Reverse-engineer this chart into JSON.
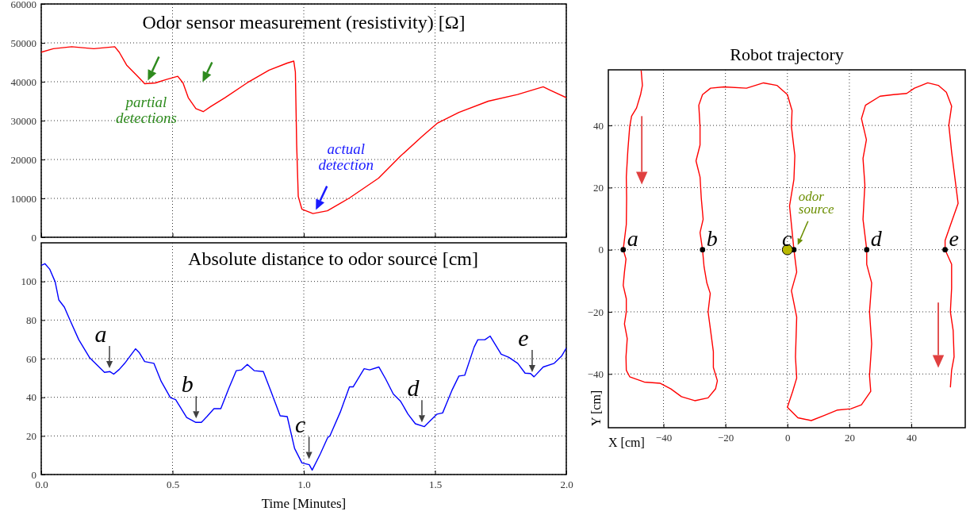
{
  "chart_data": [
    {
      "type": "line",
      "title": "Odor sensor measurement (resistivity) [Ω]",
      "xlim": [
        0,
        2
      ],
      "xticks": [
        0,
        0.5,
        1,
        1.5,
        2
      ],
      "ylim": [
        0,
        60000
      ],
      "yticks": [
        0,
        10000,
        20000,
        30000,
        40000,
        50000,
        60000
      ],
      "tick_labels": "y",
      "grid": true,
      "line_style": "solid",
      "series": [
        {
          "color": "#ff0000",
          "x": [
            0,
            0.046,
            0.116,
            0.2,
            0.28,
            0.297,
            0.325,
            0.366,
            0.394,
            0.435,
            0.477,
            0.52,
            0.54,
            0.56,
            0.589,
            0.617,
            0.645,
            0.7,
            0.784,
            0.868,
            0.937,
            0.962,
            0.968,
            0.973,
            0.979,
            0.993,
            1.035,
            1.09,
            1.174,
            1.285,
            1.369,
            1.452,
            1.508,
            1.591,
            1.703,
            1.814,
            1.912,
            1.94,
            2.0
          ],
          "values": [
            47600,
            48500,
            49000,
            48500,
            49000,
            47600,
            44300,
            41500,
            39500,
            39700,
            40600,
            41400,
            39700,
            35900,
            33100,
            32300,
            33600,
            35900,
            39700,
            43000,
            44800,
            45300,
            42500,
            23700,
            10500,
            7200,
            6100,
            6800,
            10100,
            15200,
            20900,
            26000,
            29300,
            32100,
            35000,
            36700,
            38700,
            37800,
            35900
          ]
        }
      ],
      "annotations": [
        {
          "text": "partial detections",
          "x": 0.4,
          "y": 39500
        },
        {
          "text": "actual detection",
          "x": 1.04,
          "y": 6200
        }
      ]
    },
    {
      "type": "line",
      "title": "Absolute distance to odor source [cm]",
      "xlabel": "Time [Minutes]",
      "xlim": [
        0,
        2
      ],
      "xticks": [
        {
          "value": 0,
          "label": "0.0"
        },
        0.5,
        {
          "value": 1,
          "label": "1.0"
        },
        1.5,
        {
          "value": 2,
          "label": "2.0"
        }
      ],
      "ylim": [
        0,
        120
      ],
      "yticks": [
        0,
        20,
        40,
        60,
        80,
        100
      ],
      "grid": true,
      "line_style": "solid",
      "series": [
        {
          "color": "#0000ff",
          "x": [
            0,
            0.014,
            0.032,
            0.053,
            0.067,
            0.088,
            0.109,
            0.143,
            0.185,
            0.241,
            0.262,
            0.276,
            0.297,
            0.318,
            0.359,
            0.373,
            0.394,
            0.429,
            0.457,
            0.492,
            0.512,
            0.554,
            0.589,
            0.61,
            0.631,
            0.658,
            0.684,
            0.714,
            0.743,
            0.763,
            0.785,
            0.811,
            0.846,
            0.874,
            0.91,
            0.937,
            0.965,
            0.993,
            1.021,
            1.032,
            1.063,
            1.091,
            1.1,
            1.139,
            1.174,
            1.188,
            1.23,
            1.251,
            1.286,
            1.313,
            1.341,
            1.369,
            1.397,
            1.425,
            1.459,
            1.48,
            1.508,
            1.529,
            1.564,
            1.591,
            1.613,
            1.649,
            1.663,
            1.69,
            1.71,
            1.752,
            1.78,
            1.815,
            1.843,
            1.864,
            1.877,
            1.912,
            1.954,
            1.982,
            2.0
          ],
          "values": [
            108.3,
            109.2,
            106.4,
            99.8,
            90.4,
            86.7,
            80.1,
            69.8,
            60.4,
            52.9,
            53.3,
            52,
            54.4,
            57.6,
            65.1,
            63.2,
            58.5,
            57.6,
            48.2,
            39.8,
            38.8,
            29.5,
            27,
            27,
            30,
            34.1,
            34.1,
            44.5,
            53.8,
            54.2,
            57,
            53.8,
            53.3,
            43.5,
            30.4,
            30,
            13.5,
            6,
            5.1,
            2.3,
            10.7,
            19.1,
            20.1,
            32.3,
            45.4,
            45.4,
            54.8,
            54.2,
            55.7,
            49.2,
            41.7,
            37.9,
            31.3,
            26.3,
            24.8,
            27.6,
            31.3,
            31.9,
            43.5,
            51,
            51.4,
            66,
            69.8,
            69.8,
            71.7,
            62.3,
            60.8,
            57.6,
            52.5,
            52.3,
            50.6,
            55.7,
            57.6,
            61.3,
            65.5
          ]
        }
      ],
      "annotations": [
        {
          "text": "a",
          "x": 0.26,
          "y": 53
        },
        {
          "text": "b",
          "x": 0.59,
          "y": 27
        },
        {
          "text": "c",
          "x": 1.02,
          "y": 6
        },
        {
          "text": "d",
          "x": 1.45,
          "y": 25
        },
        {
          "text": "e",
          "x": 1.87,
          "y": 51
        }
      ]
    },
    {
      "type": "line",
      "title": "Robot trajectory",
      "xlabel": "X [cm]",
      "ylabel": "Y [cm]",
      "xlim": [
        -57.8,
        57.4
      ],
      "xticks": [
        {
          "value": -40,
          "label": "−40"
        },
        {
          "value": -20,
          "label": "−20"
        },
        0,
        20,
        40
      ],
      "ylim": [
        -57.3,
        57.9
      ],
      "yticks": [
        {
          "value": -40,
          "label": "−40"
        },
        {
          "value": -20,
          "label": "−20"
        },
        0,
        20,
        40
      ],
      "grid": true,
      "line_style": "solid",
      "series": [
        {
          "color": "#ff0000",
          "x": [
            -47.2,
            -46.8,
            -47.4,
            -48.7,
            -50.3,
            -50.9,
            -51.5,
            -52,
            -51.9,
            -52,
            -53,
            -52.1,
            -52.6,
            -53,
            -52,
            -52,
            -52.6,
            -51.7,
            -52.1,
            -52,
            -50.9,
            -46.2,
            -41,
            -37.6,
            -34.2,
            -29.9,
            -25.6,
            -23.2,
            -22.6,
            -23.9,
            -23.9,
            -24.8,
            -25.6,
            -24.9,
            -26,
            -26.9,
            -27.4,
            -28.2,
            -27.2,
            -27.8,
            -28.2,
            -29.5,
            -28.2,
            -28.2,
            -28.6,
            -27.4,
            -24.8,
            -20.5,
            -13.2,
            -7.7,
            -3.4,
            0,
            1.5,
            1.3,
            2.4,
            2.1,
            0.7,
            2.1,
            3,
            1.3,
            3,
            2.6,
            3,
            1.7,
            0,
            3.4,
            7.7,
            12,
            16.2,
            20.5,
            23.9,
            26.9,
            26.5,
            27.2,
            26.5,
            27.2,
            25.6,
            25.6,
            24.4,
            25,
            24.4,
            25.5,
            23.9,
            25.2,
            29.9,
            34.2,
            38.5,
            41,
            45.3,
            48.7,
            51.3,
            53,
            52.1,
            53,
            55.1,
            53,
            50.9,
            50.9,
            53,
            53,
            52.6,
            53.5,
            53.8,
            53,
            52.6
          ],
          "values": [
            57.7,
            52.9,
            49.9,
            45.6,
            43,
            39.6,
            32,
            23.4,
            16.6,
            8.1,
            0,
            -3,
            -7.2,
            -11.5,
            -15.8,
            -20,
            -23.9,
            -28.6,
            -34.5,
            -38.8,
            -40.9,
            -42.6,
            -43,
            -44.8,
            -47.3,
            -48.6,
            -47.7,
            -44.8,
            -42.2,
            -37.9,
            -32.8,
            -26,
            -20,
            -14.1,
            -10.7,
            -5.5,
            0,
            5.5,
            9.8,
            16.6,
            23.4,
            28.6,
            33.7,
            39.6,
            46.5,
            49.9,
            52,
            52.4,
            52,
            53.7,
            52.9,
            49.9,
            44.8,
            39.6,
            30.3,
            22.6,
            14.1,
            0,
            -7.2,
            -13.2,
            -21.7,
            -34.5,
            -41.3,
            -45.6,
            -50.7,
            -54.1,
            -55,
            -53.3,
            -51.6,
            -51.2,
            -49.9,
            -45.6,
            -40.5,
            -30.3,
            -20,
            -10.7,
            -4.7,
            0,
            9.8,
            20.9,
            29.4,
            35.4,
            42.2,
            46.5,
            49.4,
            49.9,
            50.3,
            52,
            53.7,
            52.9,
            50.7,
            46.2,
            40.1,
            31.5,
            14.9,
            9,
            3,
            0,
            -4.7,
            -12.4,
            -20,
            -26,
            -34.5,
            -38.8,
            -44.3
          ]
        },
        {
          "type": "scatter",
          "color": "#000000",
          "marker": "circle",
          "x": [
            -53,
            -27.4,
            2.1,
            25.6,
            50.9
          ],
          "values": [
            0,
            0,
            0,
            0,
            0
          ]
        },
        {
          "type": "scatter",
          "color": "#b8b800",
          "marker": "circle",
          "x": [
            0
          ],
          "values": [
            0
          ]
        }
      ],
      "annotations": [
        {
          "text": "a",
          "x": -53,
          "y": 0
        },
        {
          "text": "b",
          "x": -27.4,
          "y": 0
        },
        {
          "text": "c",
          "x": 2.1,
          "y": 0
        },
        {
          "text": "d",
          "x": 25.6,
          "y": 0
        },
        {
          "text": "e",
          "x": 50.9,
          "y": 0
        },
        {
          "text": "odor source",
          "x": 0,
          "y": 0
        }
      ]
    }
  ]
}
